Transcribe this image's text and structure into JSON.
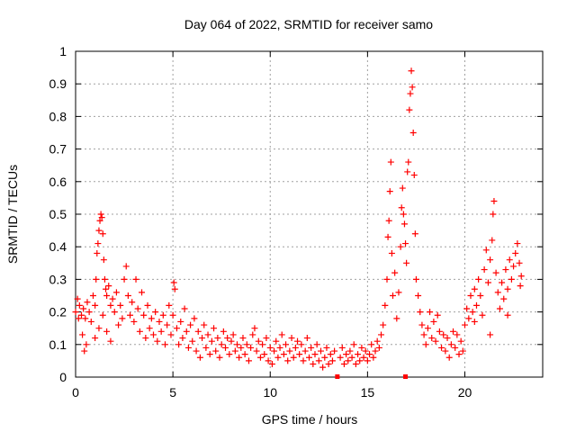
{
  "chart_data": {
    "type": "scatter",
    "title": "Day 064 of 2022, SRMTID for receiver samo",
    "xlabel": "GPS time / hours",
    "ylabel": "SRMTID / TECUs",
    "xlim": [
      0,
      24
    ],
    "ylim": [
      0,
      1
    ],
    "xticks": [
      0,
      5,
      10,
      15,
      20
    ],
    "yticks": [
      0,
      0.1,
      0.2,
      0.3,
      0.4,
      0.5,
      0.6,
      0.7,
      0.8,
      0.9,
      1
    ],
    "xtick_labels": [
      "0",
      "5",
      "10",
      "15",
      "20"
    ],
    "ytick_labels": [
      "0",
      "0.1",
      "0.2",
      "0.3",
      "0.4",
      "0.5",
      "0.6",
      "0.7",
      "0.8",
      "0.9",
      "1"
    ],
    "grid": true,
    "marker": "+",
    "color": "#ff0000",
    "gap_markers": [
      13.45,
      16.95
    ],
    "series": [
      {
        "name": "SRMTID",
        "points": [
          [
            0.0,
            0.2
          ],
          [
            0.1,
            0.24
          ],
          [
            0.15,
            0.18
          ],
          [
            0.2,
            0.22
          ],
          [
            0.3,
            0.19
          ],
          [
            0.35,
            0.13
          ],
          [
            0.4,
            0.21
          ],
          [
            0.45,
            0.08
          ],
          [
            0.5,
            0.18
          ],
          [
            0.55,
            0.1
          ],
          [
            0.6,
            0.23
          ],
          [
            0.7,
            0.2
          ],
          [
            0.8,
            0.17
          ],
          [
            0.9,
            0.25
          ],
          [
            1.0,
            0.22
          ],
          [
            1.05,
            0.3
          ],
          [
            1.1,
            0.38
          ],
          [
            1.15,
            0.41
          ],
          [
            1.2,
            0.45
          ],
          [
            1.25,
            0.48
          ],
          [
            1.3,
            0.5
          ],
          [
            1.35,
            0.49
          ],
          [
            1.4,
            0.44
          ],
          [
            1.45,
            0.36
          ],
          [
            1.5,
            0.3
          ],
          [
            1.55,
            0.27
          ],
          [
            1.6,
            0.25
          ],
          [
            1.7,
            0.28
          ],
          [
            1.8,
            0.22
          ],
          [
            1.9,
            0.24
          ],
          [
            1.0,
            0.12
          ],
          [
            1.2,
            0.15
          ],
          [
            1.4,
            0.19
          ],
          [
            1.6,
            0.14
          ],
          [
            1.8,
            0.11
          ],
          [
            2.0,
            0.2
          ],
          [
            2.1,
            0.26
          ],
          [
            2.2,
            0.16
          ],
          [
            2.3,
            0.22
          ],
          [
            2.4,
            0.18
          ],
          [
            2.5,
            0.3
          ],
          [
            2.6,
            0.34
          ],
          [
            2.7,
            0.25
          ],
          [
            2.8,
            0.19
          ],
          [
            2.9,
            0.23
          ],
          [
            3.0,
            0.17
          ],
          [
            3.1,
            0.3
          ],
          [
            3.2,
            0.21
          ],
          [
            3.3,
            0.14
          ],
          [
            3.4,
            0.26
          ],
          [
            3.5,
            0.19
          ],
          [
            3.6,
            0.12
          ],
          [
            3.7,
            0.22
          ],
          [
            3.8,
            0.15
          ],
          [
            3.9,
            0.18
          ],
          [
            4.0,
            0.13
          ],
          [
            4.1,
            0.2
          ],
          [
            4.2,
            0.11
          ],
          [
            4.3,
            0.17
          ],
          [
            4.4,
            0.14
          ],
          [
            4.5,
            0.19
          ],
          [
            4.6,
            0.1
          ],
          [
            4.7,
            0.16
          ],
          [
            4.8,
            0.22
          ],
          [
            4.9,
            0.13
          ],
          [
            5.0,
            0.19
          ],
          [
            5.05,
            0.29
          ],
          [
            5.1,
            0.27
          ],
          [
            5.2,
            0.15
          ],
          [
            5.3,
            0.1
          ],
          [
            5.4,
            0.17
          ],
          [
            5.5,
            0.12
          ],
          [
            5.6,
            0.21
          ],
          [
            5.7,
            0.14
          ],
          [
            5.8,
            0.09
          ],
          [
            5.9,
            0.16
          ],
          [
            6.0,
            0.11
          ],
          [
            6.1,
            0.18
          ],
          [
            6.2,
            0.08
          ],
          [
            6.3,
            0.14
          ],
          [
            6.4,
            0.06
          ],
          [
            6.5,
            0.12
          ],
          [
            6.6,
            0.16
          ],
          [
            6.7,
            0.09
          ],
          [
            6.8,
            0.13
          ],
          [
            6.9,
            0.07
          ],
          [
            7.0,
            0.11
          ],
          [
            7.1,
            0.15
          ],
          [
            7.2,
            0.08
          ],
          [
            7.3,
            0.12
          ],
          [
            7.4,
            0.06
          ],
          [
            7.5,
            0.1
          ],
          [
            7.6,
            0.14
          ],
          [
            7.7,
            0.09
          ],
          [
            7.8,
            0.12
          ],
          [
            7.9,
            0.07
          ],
          [
            8.0,
            0.11
          ],
          [
            8.1,
            0.13
          ],
          [
            8.2,
            0.08
          ],
          [
            8.3,
            0.1
          ],
          [
            8.4,
            0.06
          ],
          [
            8.5,
            0.09
          ],
          [
            8.6,
            0.12
          ],
          [
            8.7,
            0.07
          ],
          [
            8.8,
            0.1
          ],
          [
            8.9,
            0.05
          ],
          [
            9.0,
            0.09
          ],
          [
            9.1,
            0.13
          ],
          [
            9.2,
            0.15
          ],
          [
            9.3,
            0.08
          ],
          [
            9.4,
            0.11
          ],
          [
            9.5,
            0.06
          ],
          [
            9.6,
            0.1
          ],
          [
            9.7,
            0.07
          ],
          [
            9.8,
            0.12
          ],
          [
            9.9,
            0.05
          ],
          [
            10.0,
            0.09
          ],
          [
            10.1,
            0.04
          ],
          [
            10.2,
            0.08
          ],
          [
            10.3,
            0.11
          ],
          [
            10.4,
            0.06
          ],
          [
            10.5,
            0.09
          ],
          [
            10.6,
            0.13
          ],
          [
            10.7,
            0.07
          ],
          [
            10.8,
            0.1
          ],
          [
            10.9,
            0.05
          ],
          [
            11.0,
            0.08
          ],
          [
            11.1,
            0.12
          ],
          [
            11.2,
            0.06
          ],
          [
            11.3,
            0.09
          ],
          [
            11.4,
            0.11
          ],
          [
            11.5,
            0.07
          ],
          [
            11.6,
            0.1
          ],
          [
            11.7,
            0.05
          ],
          [
            11.8,
            0.08
          ],
          [
            11.9,
            0.12
          ],
          [
            12.0,
            0.06
          ],
          [
            12.1,
            0.09
          ],
          [
            12.2,
            0.04
          ],
          [
            12.3,
            0.07
          ],
          [
            12.4,
            0.1
          ],
          [
            12.5,
            0.05
          ],
          [
            12.6,
            0.08
          ],
          [
            12.7,
            0.03
          ],
          [
            12.8,
            0.06
          ],
          [
            12.9,
            0.09
          ],
          [
            13.0,
            0.04
          ],
          [
            13.1,
            0.07
          ],
          [
            13.2,
            0.05
          ],
          [
            13.3,
            0.08
          ],
          [
            13.6,
            0.06
          ],
          [
            13.7,
            0.09
          ],
          [
            13.8,
            0.04
          ],
          [
            13.9,
            0.07
          ],
          [
            14.0,
            0.05
          ],
          [
            14.1,
            0.08
          ],
          [
            14.2,
            0.06
          ],
          [
            14.3,
            0.1
          ],
          [
            14.4,
            0.04
          ],
          [
            14.5,
            0.07
          ],
          [
            14.6,
            0.05
          ],
          [
            14.7,
            0.09
          ],
          [
            14.8,
            0.06
          ],
          [
            14.9,
            0.08
          ],
          [
            15.0,
            0.05
          ],
          [
            15.1,
            0.07
          ],
          [
            15.2,
            0.1
          ],
          [
            15.3,
            0.06
          ],
          [
            15.4,
            0.08
          ],
          [
            15.5,
            0.11
          ],
          [
            15.6,
            0.09
          ],
          [
            15.7,
            0.13
          ],
          [
            15.8,
            0.16
          ],
          [
            15.9,
            0.22
          ],
          [
            16.0,
            0.3
          ],
          [
            16.05,
            0.43
          ],
          [
            16.1,
            0.48
          ],
          [
            16.15,
            0.57
          ],
          [
            16.2,
            0.66
          ],
          [
            16.25,
            0.38
          ],
          [
            16.3,
            0.25
          ],
          [
            16.4,
            0.32
          ],
          [
            16.5,
            0.18
          ],
          [
            16.6,
            0.26
          ],
          [
            16.7,
            0.4
          ],
          [
            16.75,
            0.52
          ],
          [
            16.8,
            0.58
          ],
          [
            16.85,
            0.5
          ],
          [
            16.9,
            0.47
          ],
          [
            16.95,
            0.41
          ],
          [
            17.0,
            0.35
          ],
          [
            17.05,
            0.63
          ],
          [
            17.1,
            0.66
          ],
          [
            17.15,
            0.82
          ],
          [
            17.2,
            0.87
          ],
          [
            17.25,
            0.94
          ],
          [
            17.3,
            0.89
          ],
          [
            17.35,
            0.75
          ],
          [
            17.4,
            0.62
          ],
          [
            17.45,
            0.44
          ],
          [
            17.5,
            0.3
          ],
          [
            17.6,
            0.25
          ],
          [
            17.7,
            0.2
          ],
          [
            17.8,
            0.16
          ],
          [
            17.9,
            0.13
          ],
          [
            18.0,
            0.1
          ],
          [
            18.1,
            0.15
          ],
          [
            18.2,
            0.2
          ],
          [
            18.3,
            0.12
          ],
          [
            18.4,
            0.17
          ],
          [
            18.5,
            0.11
          ],
          [
            18.6,
            0.19
          ],
          [
            18.7,
            0.14
          ],
          [
            18.8,
            0.09
          ],
          [
            18.9,
            0.13
          ],
          [
            19.0,
            0.08
          ],
          [
            19.1,
            0.12
          ],
          [
            19.2,
            0.06
          ],
          [
            19.3,
            0.1
          ],
          [
            19.4,
            0.14
          ],
          [
            19.5,
            0.09
          ],
          [
            19.6,
            0.13
          ],
          [
            19.7,
            0.07
          ],
          [
            19.8,
            0.11
          ],
          [
            19.9,
            0.08
          ],
          [
            20.0,
            0.16
          ],
          [
            20.1,
            0.21
          ],
          [
            20.2,
            0.18
          ],
          [
            20.3,
            0.25
          ],
          [
            20.4,
            0.2
          ],
          [
            20.5,
            0.27
          ],
          [
            20.6,
            0.22
          ],
          [
            20.7,
            0.3
          ],
          [
            20.8,
            0.25
          ],
          [
            20.9,
            0.19
          ],
          [
            21.0,
            0.33
          ],
          [
            21.1,
            0.39
          ],
          [
            21.2,
            0.29
          ],
          [
            21.3,
            0.36
          ],
          [
            21.4,
            0.42
          ],
          [
            21.45,
            0.5
          ],
          [
            21.5,
            0.54
          ],
          [
            21.6,
            0.32
          ],
          [
            21.7,
            0.26
          ],
          [
            21.8,
            0.21
          ],
          [
            21.9,
            0.29
          ],
          [
            22.0,
            0.24
          ],
          [
            22.1,
            0.33
          ],
          [
            22.2,
            0.27
          ],
          [
            22.3,
            0.36
          ],
          [
            22.4,
            0.3
          ],
          [
            22.5,
            0.34
          ],
          [
            22.6,
            0.38
          ],
          [
            22.7,
            0.41
          ],
          [
            22.8,
            0.35
          ],
          [
            22.85,
            0.28
          ],
          [
            22.9,
            0.31
          ],
          [
            22.2,
            0.19
          ],
          [
            21.3,
            0.13
          ],
          [
            20.5,
            0.17
          ]
        ]
      }
    ]
  }
}
